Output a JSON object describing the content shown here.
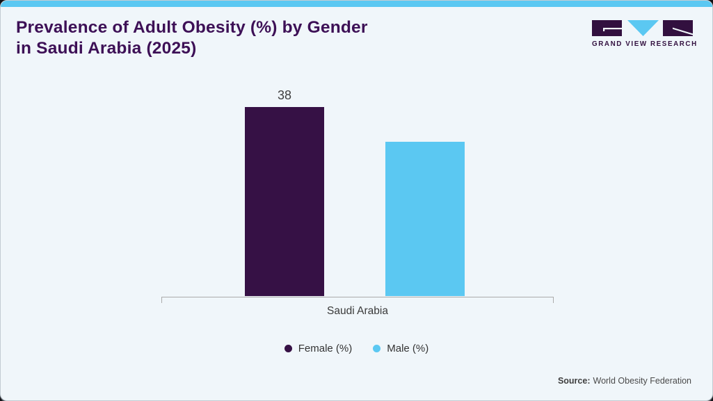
{
  "page": {
    "title_line1": "Prevalence of Adult Obesity (%) by Gender",
    "title_line2": "in Saudi Arabia (2025)",
    "source_label": "Source:",
    "source_text": "World Obesity Federation"
  },
  "logo": {
    "text": "GRAND VIEW RESEARCH"
  },
  "colors": {
    "accent_cyan": "#5bc8f2",
    "brand_purple": "#32103f",
    "title_purple": "#3d1056",
    "card_background": "#f0f6fa",
    "axis_gray": "#aaaaaa",
    "value_text": "#3f3f3f"
  },
  "chart_data": {
    "type": "bar",
    "title": "Prevalence of Adult Obesity (%) by Gender in Saudi Arabia (2025)",
    "categories": [
      "Saudi Arabia"
    ],
    "series": [
      {
        "name": "Female (%)",
        "values": [
          38
        ],
        "color": "#361145",
        "value_labels": [
          "38"
        ]
      },
      {
        "name": "Male (%)",
        "values": [
          31
        ],
        "color": "#5bc8f2",
        "value_labels": [
          ""
        ]
      }
    ],
    "xlabel": "",
    "ylabel": "",
    "ylim": [
      0,
      40
    ],
    "grid": false,
    "y_axis_shown": false,
    "legend_position": "bottom"
  }
}
